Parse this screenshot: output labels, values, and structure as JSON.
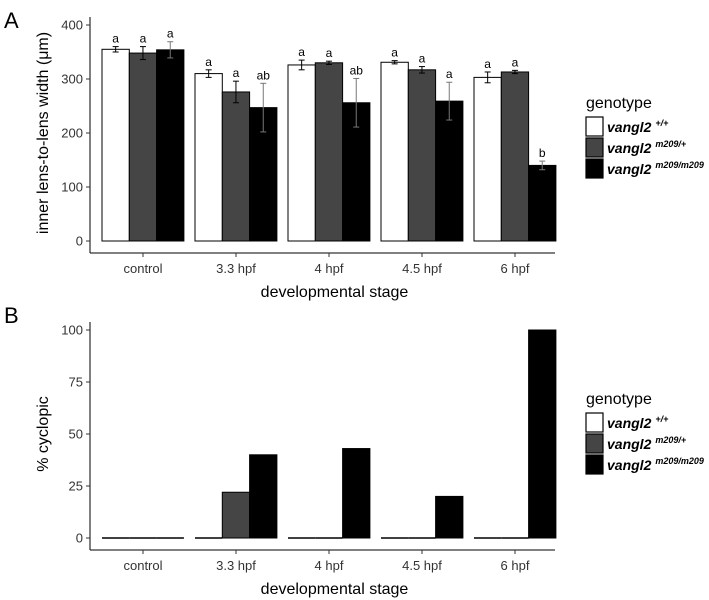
{
  "chart_data": [
    {
      "panel": "A",
      "type": "bar",
      "ylabel": "inner lens-to-lens width (μm)",
      "xlabel": "developmental stage",
      "ylim": [
        0,
        400
      ],
      "yticks": [
        0,
        100,
        200,
        300,
        400
      ],
      "categories": [
        "control",
        "3.3 hpf",
        "4 hpf",
        "4.5 hpf",
        "6 hpf"
      ],
      "series": [
        {
          "key": "wt",
          "color": "#ffffff",
          "values": [
            355,
            310,
            326,
            331,
            303
          ],
          "errors": [
            5,
            7,
            9,
            3,
            10
          ],
          "labels": [
            "a",
            "a",
            "a",
            "a",
            "a"
          ]
        },
        {
          "key": "het",
          "color": "#454545",
          "values": [
            348,
            276,
            330,
            317,
            313
          ],
          "errors": [
            12,
            20,
            3,
            6,
            3
          ],
          "labels": [
            "a",
            "a",
            "a",
            "a",
            "a"
          ]
        },
        {
          "key": "mut",
          "color": "#000000",
          "values": [
            354,
            247,
            256,
            259,
            140
          ],
          "errors": [
            15,
            45,
            45,
            35,
            8
          ],
          "labels": [
            "a",
            "ab",
            "ab",
            "a",
            "b"
          ]
        }
      ],
      "grid": false,
      "legend": "right"
    },
    {
      "panel": "B",
      "type": "bar",
      "ylabel": "% cyclopic",
      "xlabel": "developmental stage",
      "ylim": [
        0,
        100
      ],
      "yticks": [
        0,
        25,
        50,
        75,
        100
      ],
      "categories": [
        "control",
        "3.3 hpf",
        "4 hpf",
        "4.5 hpf",
        "6 hpf"
      ],
      "series": [
        {
          "key": "wt",
          "color": "#ffffff",
          "values": [
            0,
            0,
            0,
            0,
            0
          ]
        },
        {
          "key": "het",
          "color": "#454545",
          "values": [
            0,
            22,
            0,
            0,
            0
          ]
        },
        {
          "key": "mut",
          "color": "#000000",
          "values": [
            0,
            40,
            43,
            20,
            100
          ]
        }
      ],
      "grid": false,
      "legend": "right"
    }
  ],
  "legend": {
    "title": "genotype",
    "entries": [
      {
        "key": "wt",
        "name": "vangl2",
        "sup": "+/+",
        "color": "#ffffff"
      },
      {
        "key": "het",
        "name": "vangl2",
        "sup": "m209/+",
        "color": "#454545"
      },
      {
        "key": "mut",
        "name": "vangl2",
        "sup": "m209/m209",
        "color": "#000000"
      }
    ]
  }
}
